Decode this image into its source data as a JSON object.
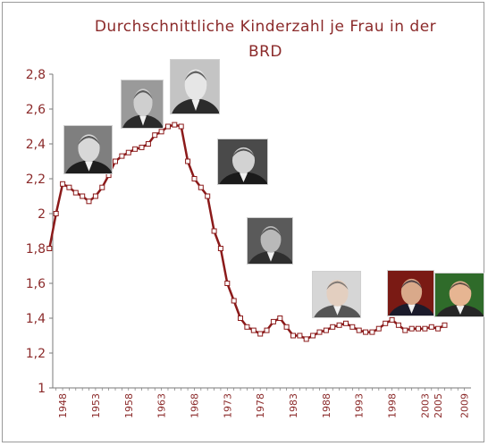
{
  "chart_data": {
    "type": "line",
    "title_line1": "Durchschnittliche Kinderzahl je Frau in der",
    "title_line2": "BRD",
    "xlabel": "",
    "ylabel": "",
    "xlim": [
      1946.5,
      2010
    ],
    "ylim": [
      1,
      2.8
    ],
    "yticks": [
      "1",
      "1,2",
      "1,4",
      "1,6",
      "1,8",
      "2",
      "2,2",
      "2,4",
      "2,6",
      "2,8"
    ],
    "xticks": [
      "1948",
      "1953",
      "1958",
      "1963",
      "1968",
      "1973",
      "1978",
      "1983",
      "1988",
      "1993",
      "1998",
      "2003",
      "2005",
      "2009"
    ],
    "line_color": "#8b1a1a",
    "grid": false,
    "series": [
      {
        "x": [
          1946,
          1947,
          1948,
          1949,
          1950,
          1951,
          1952,
          1953,
          1954,
          1955,
          1956,
          1957,
          1958,
          1959,
          1960,
          1961,
          1962,
          1963,
          1964,
          1965,
          1966,
          1967,
          1968,
          1969,
          1970,
          1971,
          1972,
          1973,
          1974,
          1975,
          1976,
          1977,
          1978,
          1979,
          1980,
          1981,
          1982,
          1983,
          1984,
          1985,
          1986,
          1987,
          1988,
          1989,
          1990,
          1991,
          1992,
          1993,
          1994,
          1995,
          1996,
          1997,
          1998,
          1999,
          2000,
          2001,
          2002,
          2003,
          2004,
          2005,
          2006
        ],
        "y": [
          1.8,
          2.0,
          2.17,
          2.15,
          2.12,
          2.1,
          2.07,
          2.1,
          2.15,
          2.22,
          2.3,
          2.33,
          2.35,
          2.37,
          2.38,
          2.4,
          2.45,
          2.47,
          2.5,
          2.51,
          2.5,
          2.3,
          2.2,
          2.15,
          2.1,
          1.9,
          1.8,
          1.6,
          1.5,
          1.4,
          1.35,
          1.33,
          1.31,
          1.33,
          1.38,
          1.4,
          1.35,
          1.3,
          1.3,
          1.28,
          1.3,
          1.32,
          1.33,
          1.35,
          1.36,
          1.37,
          1.35,
          1.33,
          1.32,
          1.32,
          1.34,
          1.37,
          1.39,
          1.36,
          1.33,
          1.34,
          1.34,
          1.34,
          1.35,
          1.34,
          1.36
        ]
      }
    ]
  },
  "portraits": [
    {
      "name": "adenauer-portrait",
      "bg": "#7f7f7f",
      "face": "#d8d8d8",
      "suit": "#1e1e1e"
    },
    {
      "name": "erhard-portrait",
      "bg": "#9a9a9a",
      "face": "#cfcfcf",
      "suit": "#2a2a2a"
    },
    {
      "name": "kiesinger-portrait",
      "bg": "#c4c4c4",
      "face": "#e6e6e6",
      "suit": "#2b2b2b"
    },
    {
      "name": "brandt-portrait",
      "bg": "#4a4a4a",
      "face": "#d2d2d2",
      "suit": "#1a1a1a"
    },
    {
      "name": "schmidt-portrait",
      "bg": "#5a5a5a",
      "face": "#b9b9b9",
      "suit": "#2e2e2e"
    },
    {
      "name": "kohl-portrait",
      "bg": "#d6d6d6",
      "face": "#e3cfc0",
      "suit": "#555555"
    },
    {
      "name": "schroeder-portrait",
      "bg": "#7a1a14",
      "face": "#d9a98a",
      "suit": "#1b1b2b"
    },
    {
      "name": "merkel-portrait",
      "bg": "#2f6b2a",
      "face": "#e6b592",
      "suit": "#262626"
    }
  ]
}
